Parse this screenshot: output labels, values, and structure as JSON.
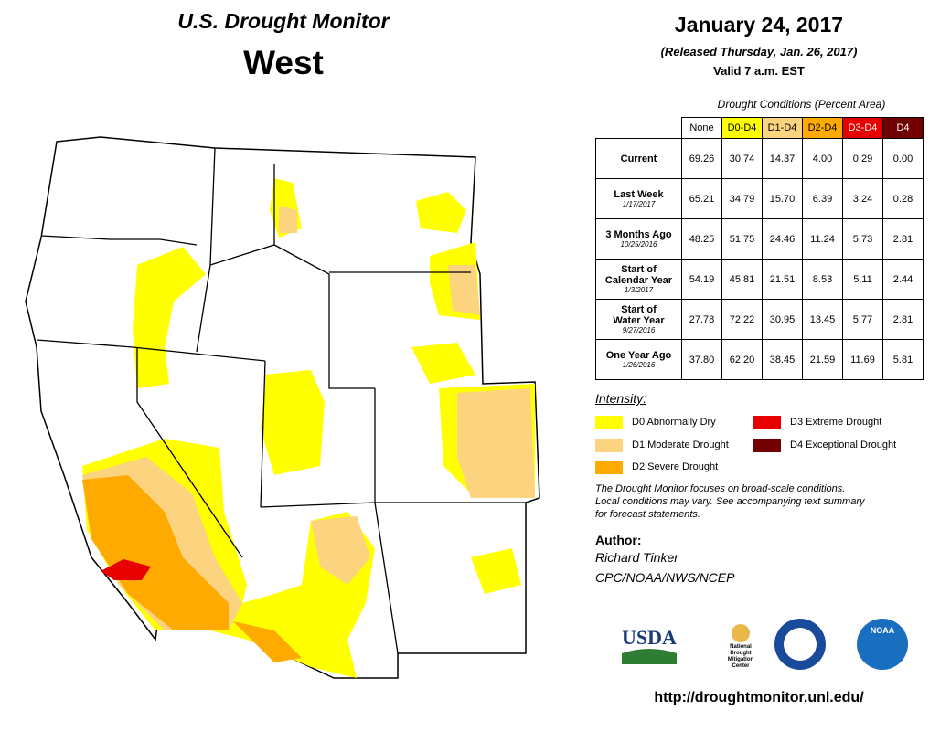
{
  "header": {
    "title": "U.S. Drought Monitor",
    "region": "West",
    "date": "January 24, 2017",
    "released": "(Released Thursday, Jan. 26, 2017)",
    "valid": "Valid  7 a.m. EST"
  },
  "table": {
    "caption": "Drought Conditions (Percent Area)",
    "columns": [
      "None",
      "D0-D4",
      "D1-D4",
      "D2-D4",
      "D3-D4",
      "D4"
    ],
    "rows": [
      {
        "label": [
          "Current"
        ],
        "values": [
          "69.26",
          "30.74",
          "14.37",
          "4.00",
          "0.29",
          "0.00"
        ]
      },
      {
        "label": [
          "Last Week"
        ],
        "date": "1/17/2017",
        "values": [
          "65.21",
          "34.79",
          "15.70",
          "6.39",
          "3.24",
          "0.28"
        ]
      },
      {
        "label": [
          "3 Months Ago"
        ],
        "date": "10/25/2016",
        "values": [
          "48.25",
          "51.75",
          "24.46",
          "11.24",
          "5.73",
          "2.81"
        ]
      },
      {
        "label": [
          "Start of",
          "Calendar Year"
        ],
        "date": "1/3/2017",
        "values": [
          "54.19",
          "45.81",
          "21.51",
          "8.53",
          "5.11",
          "2.44"
        ]
      },
      {
        "label": [
          "Start of",
          "Water Year"
        ],
        "date": "9/27/2016",
        "values": [
          "27.78",
          "72.22",
          "30.95",
          "13.45",
          "5.77",
          "2.81"
        ]
      },
      {
        "label": [
          "One Year Ago"
        ],
        "date": "1/26/2016",
        "values": [
          "37.80",
          "62.20",
          "38.45",
          "21.59",
          "11.69",
          "5.81"
        ]
      }
    ]
  },
  "legend": {
    "title": "Intensity:",
    "items": [
      "D0 Abnormally Dry",
      "D1 Moderate Drought",
      "D2 Severe Drought",
      "D3 Extreme Drought",
      "D4 Exceptional Drought"
    ]
  },
  "note": [
    "The Drought Monitor focuses on broad-scale conditions.",
    "Local conditions may vary. See accompanying text summary",
    "for forecast statements."
  ],
  "author": {
    "heading": "Author:",
    "name": "Richard Tinker",
    "org": "CPC/NOAA/NWS/NCEP"
  },
  "logos": {
    "usda": "USDA",
    "ndmc": [
      "National",
      "Drought",
      "Mitigation",
      "Center"
    ],
    "noaa": "NOAA"
  },
  "url": "http://droughtmonitor.unl.edu/"
}
